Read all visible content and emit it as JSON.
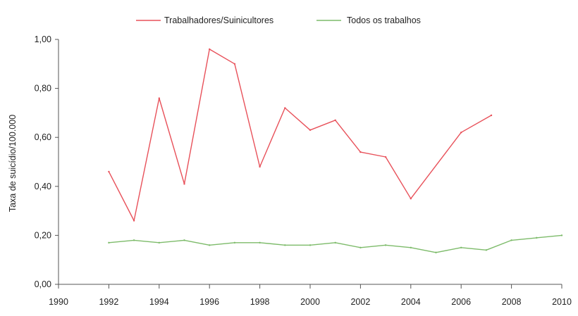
{
  "chart_data": {
    "type": "line",
    "title": "",
    "xlabel": "",
    "ylabel": "Taxa de suicídio/100.000",
    "xlim": [
      1990,
      2010
    ],
    "ylim": [
      0,
      1.0
    ],
    "x_ticks": [
      1990,
      1992,
      1994,
      1996,
      1998,
      2000,
      2002,
      2004,
      2006,
      2008,
      2010
    ],
    "x_tick_labels": [
      "1990",
      "1992",
      "1994",
      "1996",
      "1998",
      "2000",
      "2002",
      "2004",
      "2006",
      "2008",
      "2010"
    ],
    "y_ticks": [
      0,
      0.2,
      0.4,
      0.6,
      0.8,
      1.0
    ],
    "y_tick_labels": [
      "0,00",
      "0,20",
      "0,40",
      "0,60",
      "0,80",
      "1,00"
    ],
    "grid": false,
    "legend_position": "top",
    "series": [
      {
        "name": "Trabalhadores/Suinicultores",
        "color": "#e8515a",
        "x": [
          1992,
          1993,
          1994,
          1995,
          1996,
          1997,
          1998,
          1999,
          2000,
          2001,
          2002,
          2003,
          2004,
          2006,
          2007.2
        ],
        "values": [
          0.46,
          0.26,
          0.76,
          0.41,
          0.96,
          0.9,
          0.48,
          0.72,
          0.63,
          0.67,
          0.54,
          0.52,
          0.35,
          0.62,
          0.69
        ]
      },
      {
        "name": "Todos os trabalhos",
        "color": "#7dbb6a",
        "x": [
          1992,
          1993,
          1994,
          1995,
          1996,
          1997,
          1998,
          1999,
          2000,
          2001,
          2002,
          2003,
          2004,
          2005,
          2006,
          2007,
          2008,
          2009,
          2010
        ],
        "values": [
          0.17,
          0.18,
          0.17,
          0.18,
          0.16,
          0.17,
          0.17,
          0.16,
          0.16,
          0.17,
          0.15,
          0.16,
          0.15,
          0.13,
          0.15,
          0.14,
          0.18,
          0.19,
          0.2
        ]
      }
    ]
  }
}
